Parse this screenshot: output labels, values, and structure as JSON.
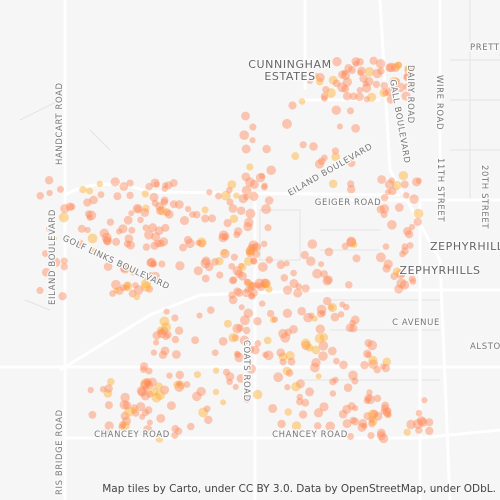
{
  "labels": {
    "cunningham_1": "CUNNINGHAM",
    "cunningham_2": "ESTATES",
    "eiland_blvd": "EILAND BOULEVARD",
    "eiland_blvd_west": "EILAND BOULEVARD",
    "geiger": "GEIGER ROAD",
    "zephyrhills_1": "ZEPHYRHILL",
    "zephyrhills_2": "ZEPHYRHILLS",
    "c_avenue": "C AVENUE",
    "alston": "ALSTO",
    "chancey_1": "CHANCEY ROAD",
    "chancey_2": "CHANCEY ROAD",
    "coats": "COATS ROAD",
    "golf_links": "GOLF LINKS BOULEVARD",
    "handcart": "HANDCART ROAD",
    "morris_bridge": "RIS BRIDGE ROAD",
    "dairy": "DAIRY ROAD",
    "wire": "WIRE ROAD",
    "gall": "GALL BOULEVARD",
    "eleventh": "11TH STREET",
    "twentieth": "20TH STREET",
    "prett": "PRETT"
  },
  "attribution": "Map tiles by Carto, under CC BY 3.0. Data by OpenStreetMap, under ODbL."
}
